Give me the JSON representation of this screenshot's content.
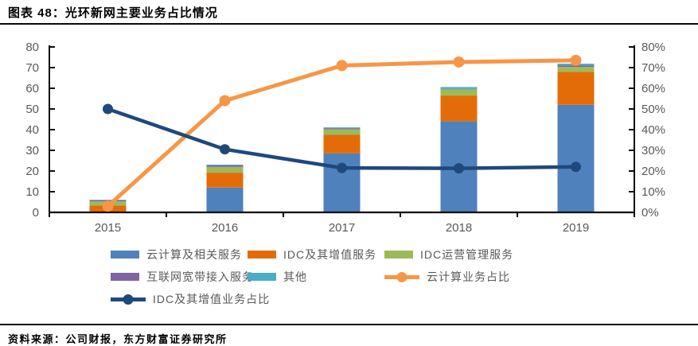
{
  "header": {
    "title": "图表 48：光环新网主要业务占比情况"
  },
  "footer": {
    "source": "资料来源：公司财报，东方财富证券研究所"
  },
  "chart_data": {
    "type": "bar",
    "subtype": "stacked-bars-with-percentage-lines",
    "categories": [
      "2015",
      "2016",
      "2017",
      "2018",
      "2019"
    ],
    "bar_series": [
      {
        "name": "云计算及相关服务",
        "color": "#4F81BD",
        "values": [
          0.3,
          12.0,
          28.5,
          44.0,
          52.0
        ]
      },
      {
        "name": "IDC及其增值服务",
        "color": "#E36C09",
        "values": [
          3.0,
          7.2,
          9.0,
          12.5,
          16.0
        ]
      },
      {
        "name": "IDC运营管理服务",
        "color": "#9BBB59",
        "values": [
          2.0,
          2.8,
          2.7,
          3.0,
          2.3
        ]
      },
      {
        "name": "互联网宽带接入服务",
        "color": "#8064A2",
        "values": [
          0.6,
          0.8,
          0.5,
          0.2,
          0.8
        ]
      },
      {
        "name": "其他",
        "color": "#4BACC6",
        "values": [
          0.2,
          0.3,
          0.4,
          0.9,
          0.8
        ]
      }
    ],
    "line_series": [
      {
        "name": "云计算业务占比",
        "color": "#F79646",
        "marker_r": 7,
        "width": 5,
        "values": [
          3.0,
          54.0,
          71.0,
          72.7,
          73.5
        ]
      },
      {
        "name": "IDC及其增值业务占比",
        "color": "#1F497D",
        "marker_r": 6.5,
        "width": 4.5,
        "values": [
          50.0,
          30.5,
          21.5,
          21.3,
          22.0
        ]
      }
    ],
    "left_axis": {
      "min": 0,
      "max": 80,
      "tick_labels": [
        "0",
        "10",
        "20",
        "30",
        "40",
        "50",
        "60",
        "70",
        "80"
      ]
    },
    "right_axis": {
      "min": 0,
      "max": 80,
      "tick_labels": [
        "0%",
        "10%",
        "20%",
        "30%",
        "40%",
        "50%",
        "60%",
        "70%",
        "80%"
      ]
    },
    "grid": "off",
    "legend_position": "bottom",
    "legend_rows": [
      [
        {
          "label": "云计算及相关服务",
          "color": "#4F81BD",
          "swatch": "rect"
        },
        {
          "label": "IDC及其增值服务",
          "color": "#E36C09",
          "swatch": "rect"
        },
        {
          "label": "IDC运营管理服务",
          "color": "#9BBB59",
          "swatch": "rect"
        }
      ],
      [
        {
          "label": "互联网宽带接入服务",
          "color": "#8064A2",
          "swatch": "rect"
        },
        {
          "label": "其他",
          "color": "#4BACC6",
          "swatch": "rect"
        },
        {
          "label": "云计算业务占比",
          "color": "#F79646",
          "swatch": "line"
        }
      ],
      [
        {
          "label": "IDC及其增值业务占比",
          "color": "#1F497D",
          "swatch": "line"
        }
      ]
    ],
    "colors": {
      "axis_line": "#0a0a0a",
      "tick_text": "#595959"
    }
  }
}
